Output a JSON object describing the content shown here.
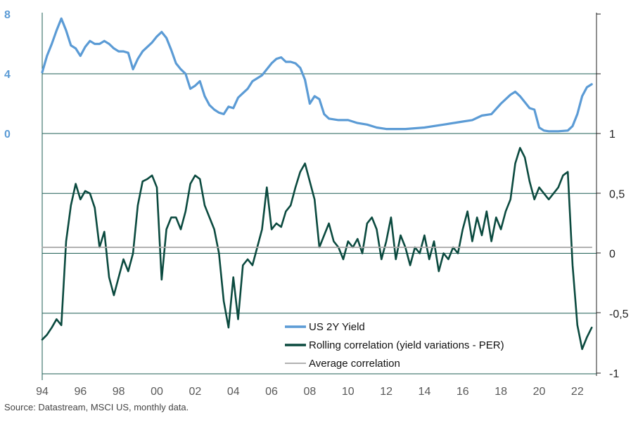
{
  "colors": {
    "yield": "#5b9bd5",
    "correlation": "#0b4a3f",
    "average": "#a6a6a6",
    "axis_left_ticks": "#5b9bd5",
    "grid": "#1f5f55"
  },
  "source": "Source: Datastream, MSCI US, monthly data.",
  "chart_data": {
    "type": "line",
    "grid": true,
    "legend_position": "bottom-center",
    "x_ticks": [
      "94",
      "96",
      "98",
      "00",
      "02",
      "04",
      "06",
      "08",
      "10",
      "12",
      "14",
      "16",
      "18",
      "20",
      "22"
    ],
    "xlim": [
      1994,
      2023
    ],
    "top_axis": {
      "ticks": [
        "0",
        "4",
        "8"
      ],
      "ylim": [
        0,
        8
      ]
    },
    "right_axis": {
      "ticks": [
        "1",
        "0,5",
        "0",
        "-0,5",
        "-1"
      ],
      "ylim": [
        -1,
        1
      ]
    },
    "series": [
      {
        "name": "US 2Y Yield",
        "axis": "top",
        "x": [
          1994.0,
          1994.25,
          1994.5,
          1994.75,
          1995.0,
          1995.25,
          1995.5,
          1995.75,
          1996.0,
          1996.25,
          1996.5,
          1996.75,
          1997.0,
          1997.25,
          1997.5,
          1997.75,
          1998.0,
          1998.25,
          1998.5,
          1998.75,
          1999.0,
          1999.25,
          1999.5,
          1999.75,
          2000.0,
          2000.25,
          2000.5,
          2000.75,
          2001.0,
          2001.25,
          2001.5,
          2001.75,
          2002.0,
          2002.25,
          2002.5,
          2002.75,
          2003.0,
          2003.25,
          2003.5,
          2003.75,
          2004.0,
          2004.25,
          2004.5,
          2004.75,
          2005.0,
          2005.25,
          2005.5,
          2005.75,
          2006.0,
          2006.25,
          2006.5,
          2006.75,
          2007.0,
          2007.25,
          2007.5,
          2007.75,
          2008.0,
          2008.25,
          2008.5,
          2008.75,
          2009.0,
          2009.5,
          2010.0,
          2010.5,
          2011.0,
          2011.5,
          2012.0,
          2013.0,
          2014.0,
          2015.0,
          2016.0,
          2016.5,
          2017.0,
          2017.5,
          2018.0,
          2018.5,
          2018.75,
          2019.0,
          2019.5,
          2019.75,
          2020.0,
          2020.25,
          2020.5,
          2021.0,
          2021.5,
          2021.75,
          2022.0,
          2022.25,
          2022.5,
          2022.75
        ],
        "values": [
          4.1,
          5.2,
          6.0,
          6.9,
          7.7,
          6.9,
          5.9,
          5.7,
          5.2,
          5.8,
          6.2,
          6.0,
          6.0,
          6.2,
          6.0,
          5.7,
          5.5,
          5.5,
          5.4,
          4.3,
          5.0,
          5.5,
          5.8,
          6.1,
          6.5,
          6.8,
          6.4,
          5.6,
          4.7,
          4.3,
          4.0,
          3.0,
          3.2,
          3.5,
          2.5,
          1.9,
          1.6,
          1.4,
          1.3,
          1.8,
          1.7,
          2.4,
          2.7,
          3.0,
          3.5,
          3.7,
          3.9,
          4.3,
          4.7,
          5.0,
          5.1,
          4.8,
          4.8,
          4.7,
          4.4,
          3.6,
          2.0,
          2.5,
          2.3,
          1.3,
          1.0,
          0.9,
          0.9,
          0.7,
          0.6,
          0.4,
          0.3,
          0.3,
          0.4,
          0.6,
          0.8,
          0.9,
          1.2,
          1.3,
          2.0,
          2.6,
          2.8,
          2.5,
          1.7,
          1.6,
          0.4,
          0.2,
          0.15,
          0.15,
          0.2,
          0.5,
          1.3,
          2.5,
          3.1,
          3.3
        ]
      },
      {
        "name": "Rolling correlation (yield variations - PER)",
        "axis": "right",
        "x": [
          1994.0,
          1994.25,
          1994.5,
          1994.75,
          1995.0,
          1995.25,
          1995.5,
          1995.75,
          1996.0,
          1996.25,
          1996.5,
          1996.75,
          1997.0,
          1997.25,
          1997.5,
          1997.75,
          1998.0,
          1998.25,
          1998.5,
          1998.75,
          1999.0,
          1999.25,
          1999.5,
          1999.75,
          2000.0,
          2000.25,
          2000.5,
          2000.75,
          2001.0,
          2001.25,
          2001.5,
          2001.75,
          2002.0,
          2002.25,
          2002.5,
          2002.75,
          2003.0,
          2003.25,
          2003.5,
          2003.75,
          2004.0,
          2004.25,
          2004.5,
          2004.75,
          2005.0,
          2005.25,
          2005.5,
          2005.75,
          2006.0,
          2006.25,
          2006.5,
          2006.75,
          2007.0,
          2007.25,
          2007.5,
          2007.75,
          2008.0,
          2008.25,
          2008.5,
          2008.75,
          2009.0,
          2009.25,
          2009.5,
          2009.75,
          2010.0,
          2010.25,
          2010.5,
          2010.75,
          2011.0,
          2011.25,
          2011.5,
          2011.75,
          2012.0,
          2012.25,
          2012.5,
          2012.75,
          2013.0,
          2013.25,
          2013.5,
          2013.75,
          2014.0,
          2014.25,
          2014.5,
          2014.75,
          2015.0,
          2015.25,
          2015.5,
          2015.75,
          2016.0,
          2016.25,
          2016.5,
          2016.75,
          2017.0,
          2017.25,
          2017.5,
          2017.75,
          2018.0,
          2018.25,
          2018.5,
          2018.75,
          2019.0,
          2019.25,
          2019.5,
          2019.75,
          2020.0,
          2020.25,
          2020.5,
          2020.75,
          2021.0,
          2021.25,
          2021.5,
          2021.75,
          2022.0,
          2022.25,
          2022.5,
          2022.75
        ],
        "values": [
          -0.72,
          -0.68,
          -0.62,
          -0.55,
          -0.6,
          0.1,
          0.4,
          0.58,
          0.45,
          0.52,
          0.5,
          0.38,
          0.05,
          0.18,
          -0.2,
          -0.35,
          -0.2,
          -0.05,
          -0.15,
          0.0,
          0.4,
          0.6,
          0.62,
          0.65,
          0.55,
          -0.22,
          0.2,
          0.3,
          0.3,
          0.2,
          0.35,
          0.58,
          0.65,
          0.62,
          0.4,
          0.3,
          0.2,
          0.0,
          -0.4,
          -0.62,
          -0.2,
          -0.55,
          -0.1,
          -0.05,
          -0.1,
          0.05,
          0.2,
          0.55,
          0.2,
          0.25,
          0.22,
          0.35,
          0.4,
          0.55,
          0.68,
          0.75,
          0.6,
          0.45,
          0.05,
          0.15,
          0.25,
          0.1,
          0.05,
          -0.05,
          0.1,
          0.05,
          0.12,
          0.0,
          0.25,
          0.3,
          0.2,
          -0.05,
          0.1,
          0.3,
          -0.05,
          0.15,
          0.05,
          -0.1,
          0.05,
          0.0,
          0.15,
          -0.05,
          0.1,
          -0.15,
          0.0,
          -0.05,
          0.05,
          0.0,
          0.2,
          0.35,
          0.1,
          0.3,
          0.15,
          0.35,
          0.1,
          0.3,
          0.2,
          0.35,
          0.45,
          0.75,
          0.88,
          0.8,
          0.6,
          0.45,
          0.55,
          0.5,
          0.45,
          0.5,
          0.55,
          0.65,
          0.68,
          -0.1,
          -0.6,
          -0.8,
          -0.7,
          -0.62
        ]
      },
      {
        "name": "Average correlation",
        "axis": "right",
        "x": [
          1994.0,
          2022.75
        ],
        "values": [
          0.05,
          0.05
        ]
      }
    ]
  }
}
